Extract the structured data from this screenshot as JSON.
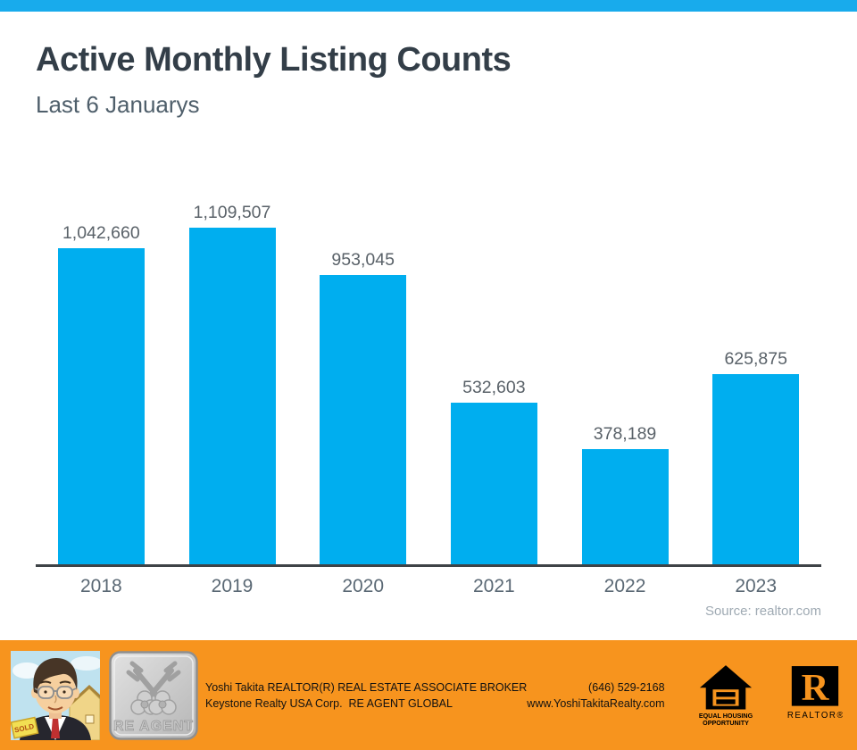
{
  "top_bar": {
    "color": "#18abec"
  },
  "header": {
    "title": "Active Monthly Listing Counts",
    "subtitle": "Last 6 Januarys"
  },
  "chart_data": {
    "type": "bar",
    "categories": [
      "2018",
      "2019",
      "2020",
      "2021",
      "2022",
      "2023"
    ],
    "values": [
      1042660,
      1109507,
      953045,
      532603,
      378189,
      625875
    ],
    "value_labels": [
      "1,042,660",
      "1,109,507",
      "953,045",
      "532,603",
      "378,189",
      "625,875"
    ],
    "title": "Active Monthly Listing Counts",
    "subtitle": "Last 6 Januarys",
    "xlabel": "",
    "ylabel": "",
    "ylim": [
      0,
      1109507
    ],
    "grid": false,
    "legend": false,
    "bar_color": "#00aeef",
    "source": "Source: realtor.com"
  },
  "footer": {
    "background": "#f7941e",
    "line1_left": "Yoshi Takita REALTOR(R) REAL ESTATE ASSOCIATE BROKER",
    "line2_left": "Keystone Realty USA Corp.  RE AGENT GLOBAL",
    "line1_right": "(646) 529-2168",
    "line2_right": "www.YoshiTakitaRealty.com",
    "badge_label": "RE AGENT",
    "avatar_sign_text": "SOLD",
    "equal_housing_line1": "EQUAL HOUSING",
    "equal_housing_line2": "OPPORTUNITY",
    "realtor_label": "REALTOR®"
  }
}
